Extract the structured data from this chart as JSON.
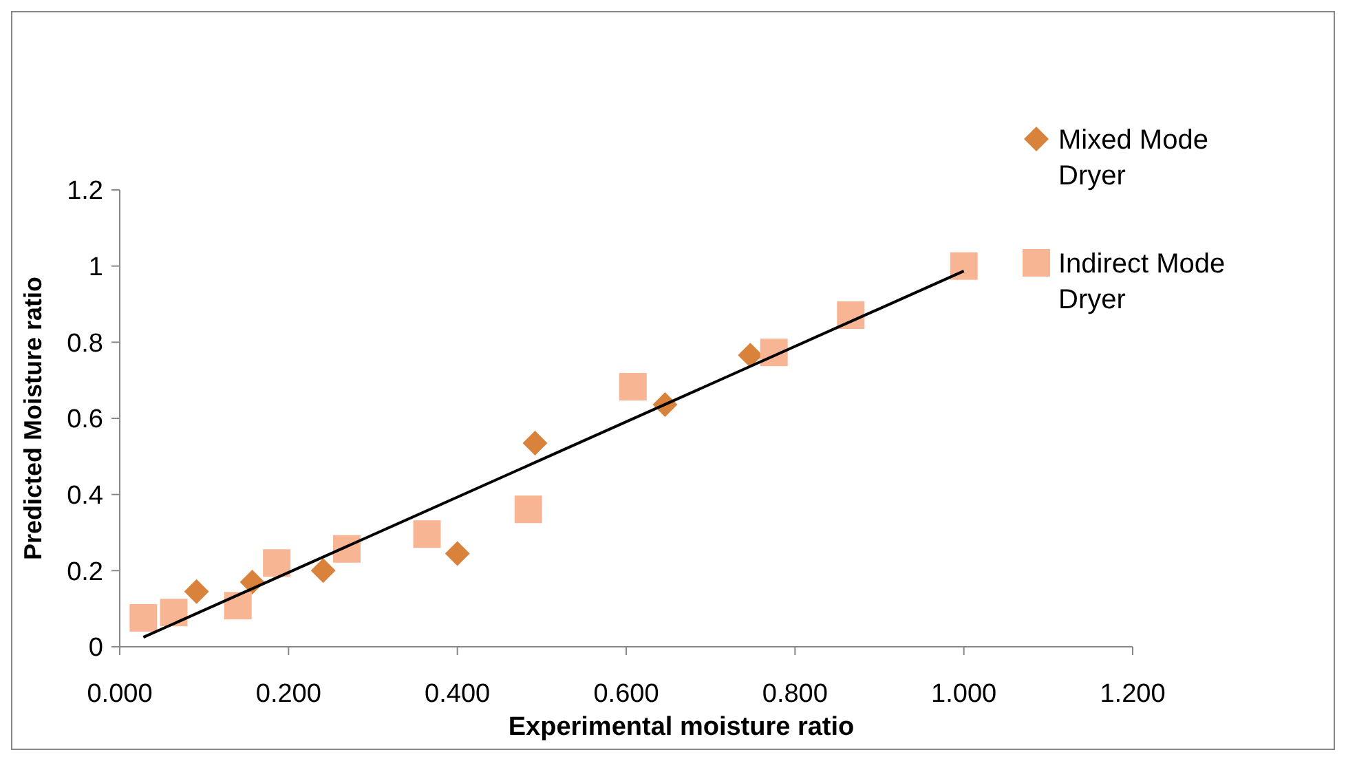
{
  "chart_data": {
    "type": "scatter",
    "xlabel": "Experimental moisture ratio",
    "ylabel": "Predicted Moisture ratio",
    "xlim": [
      0,
      1.2
    ],
    "xticks": [
      {
        "value": 0,
        "label": "0.000"
      },
      {
        "value": 0.2,
        "label": "0.200"
      },
      {
        "value": 0.4,
        "label": "0.400"
      },
      {
        "value": 0.6,
        "label": "0.600"
      },
      {
        "value": 0.8,
        "label": "0.800"
      },
      {
        "value": 1,
        "label": "1.000"
      },
      {
        "value": 1.2,
        "label": "1.200"
      }
    ],
    "ylim": [
      0,
      1.2
    ],
    "yticks": [
      0,
      0.2,
      0.4,
      0.6,
      0.8,
      1,
      1.2
    ],
    "grid": false,
    "legend": "right",
    "series": [
      {
        "name": "Mixed Mode Dryer",
        "color": "#d9823b",
        "marker": "diamond",
        "x": [
          0.091,
          0.157,
          0.241,
          0.4,
          0.492,
          0.646,
          0.747
        ],
        "values": [
          0.145,
          0.17,
          0.2,
          0.245,
          0.535,
          0.636,
          0.766
        ]
      },
      {
        "name": "Indirect Mode Dryer",
        "color": "#f8b593",
        "marker": "square",
        "x": [
          0.028,
          0.064,
          0.14,
          0.186,
          0.269,
          0.364,
          0.484,
          0.608,
          0.775,
          0.866,
          1.0
        ],
        "values": [
          0.076,
          0.09,
          0.108,
          0.22,
          0.257,
          0.296,
          0.361,
          0.683,
          0.773,
          0.871,
          1.0
        ]
      },
      {
        "type": "line",
        "color": "#000000",
        "marker": "none",
        "x": [
          0.028,
          1.0
        ],
        "values": [
          0.025,
          0.987
        ]
      }
    ]
  }
}
